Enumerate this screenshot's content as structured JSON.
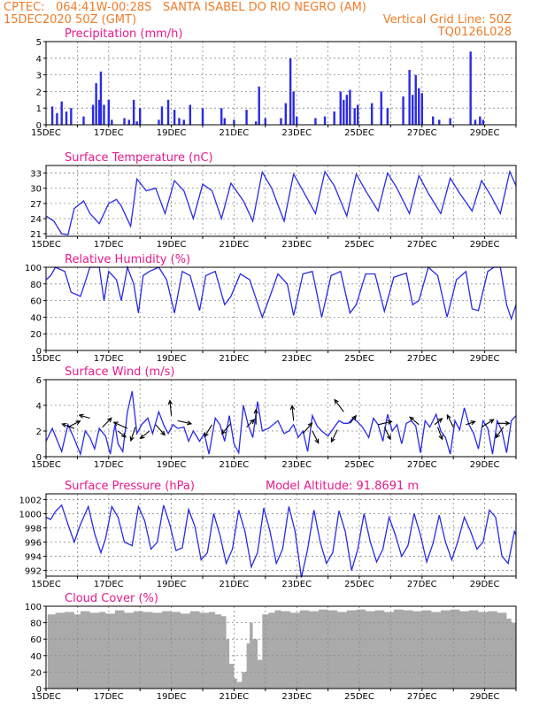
{
  "header": {
    "line1_left": "CPTEC:",
    "coords": "064:41W-00:28S",
    "station": "SANTA ISABEL DO RIO NEGRO (AM)",
    "date": "15DEC2020 50Z (GMT)",
    "grid_note": "Vertical Grid Line: 50Z",
    "code": "TQ0126L028"
  },
  "colors": {
    "header": "#f07c28",
    "title": "#e8198b",
    "series": "#2a2ae8",
    "cloud": "#aaaaaa",
    "grid": "#888888"
  },
  "x_labels": [
    "15DEC",
    "17DEC",
    "19DEC",
    "21DEC",
    "23DEC",
    "25DEC",
    "27DEC",
    "29DEC"
  ],
  "chart_data": [
    {
      "id": "precip",
      "type": "bar",
      "title": "Precipitation (mm/h)",
      "ylim": [
        0,
        5
      ],
      "yticks": [
        0,
        1,
        2,
        3,
        4,
        5
      ],
      "x_range_days": [
        15,
        30
      ],
      "grid": true,
      "x": [
        15.2,
        15.35,
        15.5,
        15.65,
        15.8,
        16.2,
        16.5,
        16.6,
        16.7,
        16.75,
        16.85,
        17.0,
        17.1,
        17.5,
        17.65,
        17.8,
        17.9,
        18.0,
        18.6,
        18.7,
        18.9,
        19.1,
        19.25,
        19.4,
        19.6,
        20.0,
        20.6,
        20.7,
        21.0,
        21.4,
        21.7,
        21.8,
        22.0,
        22.5,
        22.65,
        22.8,
        22.9,
        23.0,
        23.6,
        23.9,
        24.2,
        24.4,
        24.5,
        24.6,
        24.7,
        24.85,
        24.95,
        25.4,
        25.7,
        25.9,
        26.4,
        26.6,
        26.7,
        26.8,
        26.9,
        27.0,
        27.35,
        27.55,
        27.9,
        28.55,
        28.7,
        28.85,
        28.95
      ],
      "values": [
        1.1,
        0.7,
        1.4,
        0.8,
        1.0,
        0.5,
        1.2,
        2.5,
        1.5,
        3.2,
        1.2,
        1.5,
        0.3,
        0.4,
        0.3,
        1.5,
        0.2,
        1.0,
        0.3,
        1.1,
        1.5,
        0.9,
        0.4,
        0.3,
        1.2,
        1.0,
        1.0,
        0.4,
        0.3,
        0.9,
        0.2,
        2.3,
        0.4,
        0.4,
        1.3,
        4.0,
        2.0,
        0.5,
        0.4,
        0.5,
        0.8,
        2.0,
        1.5,
        1.8,
        2.1,
        1.0,
        1.2,
        1.3,
        2.0,
        1.0,
        1.7,
        3.3,
        1.8,
        3.0,
        2.2,
        1.9,
        0.5,
        0.3,
        0.4,
        4.4,
        0.3,
        0.5,
        0.3
      ]
    },
    {
      "id": "temp",
      "type": "line",
      "title": "Surface Temperature (nC)",
      "ylim": [
        20.5,
        34.5
      ],
      "yticks": [
        21,
        24,
        27,
        30,
        33
      ],
      "x_range_days": [
        15,
        30
      ],
      "grid": true,
      "x": [
        15.0,
        15.25,
        15.5,
        15.7,
        15.9,
        16.2,
        16.4,
        16.7,
        17.0,
        17.25,
        17.4,
        17.7,
        17.9,
        18.2,
        18.5,
        18.8,
        19.1,
        19.4,
        19.7,
        20.0,
        20.3,
        20.6,
        20.9,
        21.3,
        21.6,
        21.9,
        22.2,
        22.6,
        22.9,
        23.2,
        23.6,
        23.9,
        24.2,
        24.6,
        24.9,
        25.2,
        25.6,
        25.9,
        26.2,
        26.6,
        26.9,
        27.2,
        27.6,
        27.9,
        28.2,
        28.6,
        28.9,
        29.2,
        29.5,
        29.8,
        30.0
      ],
      "values": [
        24.5,
        23.5,
        21.0,
        20.8,
        26.0,
        27.5,
        25.0,
        23.0,
        27.0,
        27.8,
        26.5,
        22.5,
        31.8,
        29.5,
        30.0,
        25.0,
        31.5,
        29.5,
        24.0,
        30.8,
        29.5,
        24.0,
        31.0,
        27.5,
        23.5,
        33.2,
        30.0,
        23.5,
        32.8,
        29.5,
        25.0,
        33.3,
        30.5,
        24.5,
        32.8,
        29.5,
        25.5,
        33.0,
        30.0,
        25.0,
        32.5,
        29.0,
        25.0,
        32.0,
        29.0,
        25.5,
        31.5,
        28.5,
        25.0,
        33.3,
        30.5
      ]
    },
    {
      "id": "rh",
      "type": "line",
      "title": "Relative Humidity (%)",
      "ylim": [
        0,
        100
      ],
      "yticks": [
        0,
        20,
        40,
        60,
        80,
        100
      ],
      "x_range_days": [
        15,
        30
      ],
      "grid": true,
      "x": [
        15.0,
        15.15,
        15.3,
        15.6,
        15.8,
        16.1,
        16.4,
        16.7,
        16.85,
        17.0,
        17.25,
        17.4,
        17.6,
        17.8,
        17.95,
        18.1,
        18.3,
        18.6,
        18.85,
        19.1,
        19.35,
        19.6,
        19.9,
        20.1,
        20.4,
        20.7,
        20.9,
        21.2,
        21.5,
        21.9,
        22.1,
        22.4,
        22.7,
        22.9,
        23.2,
        23.5,
        23.8,
        24.1,
        24.4,
        24.7,
        24.9,
        25.2,
        25.5,
        25.8,
        26.1,
        26.5,
        26.7,
        26.9,
        27.2,
        27.5,
        27.8,
        28.1,
        28.4,
        28.6,
        28.8,
        29.1,
        29.3,
        29.5,
        29.7,
        29.85,
        30.0
      ],
      "values": [
        85,
        90,
        100,
        95,
        70,
        65,
        100,
        100,
        60,
        95,
        85,
        60,
        100,
        80,
        45,
        90,
        95,
        100,
        85,
        45,
        95,
        90,
        48,
        90,
        95,
        55,
        65,
        92,
        85,
        40,
        60,
        92,
        80,
        42,
        92,
        95,
        40,
        90,
        95,
        45,
        55,
        92,
        92,
        47,
        88,
        93,
        55,
        60,
        100,
        90,
        40,
        85,
        95,
        50,
        48,
        95,
        100,
        100,
        55,
        38,
        55
      ]
    },
    {
      "id": "wind",
      "type": "line",
      "title": "Surface Wind (m/s)",
      "ylim": [
        0,
        6
      ],
      "yticks": [
        0,
        2,
        4,
        6
      ],
      "x_range_days": [
        15,
        30
      ],
      "grid": true,
      "x": [
        15.0,
        15.2,
        15.35,
        15.5,
        15.7,
        15.9,
        16.1,
        16.25,
        16.4,
        16.55,
        16.7,
        16.9,
        17.05,
        17.2,
        17.3,
        17.45,
        17.6,
        17.75,
        17.9,
        18.05,
        18.25,
        18.4,
        18.6,
        18.75,
        18.9,
        19.05,
        19.2,
        19.4,
        19.55,
        19.7,
        19.9,
        20.05,
        20.2,
        20.4,
        20.55,
        20.7,
        20.85,
        21.0,
        21.15,
        21.3,
        21.45,
        21.6,
        21.75,
        21.9,
        22.1,
        22.25,
        22.4,
        22.6,
        22.75,
        22.9,
        23.05,
        23.2,
        23.35,
        23.5,
        23.65,
        23.8,
        24.0,
        24.2,
        24.35,
        24.5,
        24.65,
        24.8,
        24.95,
        25.1,
        25.3,
        25.45,
        25.6,
        25.75,
        25.9,
        26.05,
        26.2,
        26.35,
        26.5,
        26.65,
        26.8,
        26.95,
        27.1,
        27.25,
        27.45,
        27.6,
        27.75,
        27.9,
        28.05,
        28.2,
        28.35,
        28.5,
        28.65,
        28.8,
        28.95,
        29.1,
        29.25,
        29.4,
        29.55,
        29.7,
        29.85,
        30.0
      ],
      "values": [
        1.2,
        2.2,
        1.3,
        0.4,
        2.5,
        1.4,
        0.2,
        2.0,
        1.5,
        0.6,
        2.2,
        1.6,
        0.2,
        2.5,
        1.0,
        0.4,
        3.5,
        5.1,
        1.8,
        2.5,
        3.0,
        1.8,
        3.5,
        2.5,
        1.8,
        2.5,
        2.2,
        2.3,
        1.2,
        2.0,
        1.2,
        1.8,
        0.2,
        3.0,
        2.5,
        1.2,
        3.2,
        1.0,
        0.3,
        4.0,
        2.5,
        1.5,
        4.3,
        2.0,
        2.2,
        2.5,
        2.8,
        1.8,
        2.0,
        2.5,
        1.5,
        2.0,
        0.4,
        3.2,
        2.4,
        2.0,
        1.6,
        2.3,
        2.8,
        2.6,
        2.6,
        3.0,
        2.7,
        2.3,
        1.5,
        3.0,
        2.5,
        1.2,
        3.3,
        2.0,
        2.5,
        1.0,
        2.6,
        2.8,
        2.4,
        0.3,
        2.8,
        2.3,
        3.3,
        2.0,
        1.5,
        0.2,
        2.8,
        2.1,
        3.8,
        2.5,
        1.8,
        0.6,
        2.8,
        2.2,
        0.2,
        2.8,
        2.0,
        0.3,
        2.8,
        3.2
      ],
      "arrows": [
        [
          15.7,
          2.3,
          0.8,
          0.4
        ],
        [
          15.9,
          2.2,
          -0.8,
          0.3
        ],
        [
          16.4,
          3.0,
          -0.7,
          0.2
        ],
        [
          16.8,
          2.3,
          0.6,
          0.6
        ],
        [
          17.3,
          2.0,
          0.5,
          -0.4
        ],
        [
          17.6,
          2.2,
          -0.9,
          0.4
        ],
        [
          17.85,
          2.3,
          -0.3,
          -0.9
        ],
        [
          18.3,
          2.0,
          -0.6,
          -0.5
        ],
        [
          18.5,
          2.5,
          0.6,
          -0.7
        ],
        [
          19.0,
          3.2,
          -0.1,
          1.0
        ],
        [
          19.2,
          2.8,
          0.9,
          -0.2
        ],
        [
          20.3,
          2.5,
          -0.5,
          -0.8
        ],
        [
          20.9,
          2.6,
          -0.6,
          -0.7
        ],
        [
          21.4,
          2.3,
          0.5,
          0.5
        ],
        [
          21.7,
          2.5,
          0.0,
          1.0
        ],
        [
          22.9,
          2.8,
          -0.1,
          1.0
        ],
        [
          23.2,
          1.8,
          0.6,
          0.7
        ],
        [
          23.5,
          2.0,
          0.4,
          -0.8
        ],
        [
          24.3,
          2.1,
          -0.4,
          -0.8
        ],
        [
          24.5,
          3.5,
          -0.6,
          0.8
        ],
        [
          24.7,
          2.6,
          0.4,
          0.5
        ],
        [
          25.6,
          2.5,
          0.9,
          0.2
        ],
        [
          25.8,
          2.3,
          0.4,
          -0.8
        ],
        [
          26.9,
          2.5,
          -0.6,
          0.5
        ],
        [
          27.4,
          2.5,
          0.5,
          0.4
        ],
        [
          27.5,
          2.3,
          0.3,
          -0.8
        ],
        [
          28.0,
          2.3,
          -0.4,
          0.8
        ],
        [
          28.4,
          2.5,
          0.6,
          0.2
        ],
        [
          28.9,
          2.3,
          0.8,
          0.5
        ],
        [
          29.4,
          2.6,
          0.8,
          0.0
        ],
        [
          29.6,
          2.3,
          -0.5,
          -0.7
        ]
      ]
    },
    {
      "id": "pres",
      "type": "line",
      "title": "Surface Pressure (hPa)",
      "annotation": "Model Altitude: 91.8691 m",
      "ylim": [
        991.2,
        1002.8
      ],
      "yticks": [
        992,
        994,
        996,
        998,
        1000,
        1002
      ],
      "x_range_days": [
        15,
        30
      ],
      "grid": true,
      "x": [
        15.0,
        15.15,
        15.3,
        15.5,
        15.7,
        15.9,
        16.1,
        16.35,
        16.55,
        16.75,
        16.9,
        17.1,
        17.3,
        17.5,
        17.75,
        17.95,
        18.15,
        18.35,
        18.55,
        18.75,
        18.95,
        19.15,
        19.35,
        19.55,
        19.75,
        19.95,
        20.15,
        20.35,
        20.55,
        20.75,
        20.95,
        21.15,
        21.35,
        21.55,
        21.75,
        21.95,
        22.15,
        22.35,
        22.55,
        22.75,
        22.95,
        23.15,
        23.35,
        23.55,
        23.75,
        23.95,
        24.15,
        24.35,
        24.55,
        24.75,
        24.95,
        25.15,
        25.35,
        25.55,
        25.75,
        25.95,
        26.15,
        26.35,
        26.55,
        26.75,
        26.95,
        27.15,
        27.35,
        27.55,
        27.75,
        27.95,
        28.15,
        28.35,
        28.55,
        28.75,
        28.95,
        29.15,
        29.35,
        29.55,
        29.75,
        29.95,
        30.0
      ],
      "values": [
        999.5,
        999.2,
        1000.3,
        1001.2,
        998.5,
        996.0,
        998.5,
        1001.0,
        997.2,
        994.5,
        996.5,
        1001.0,
        999.5,
        996.0,
        995.5,
        1001.0,
        999.0,
        995.0,
        996.0,
        1001.2,
        998.5,
        994.8,
        995.2,
        1000.6,
        998.2,
        993.5,
        994.5,
        1000.0,
        997.0,
        993.0,
        995.0,
        1000.5,
        997.5,
        992.5,
        994.5,
        1000.8,
        997.5,
        993.0,
        995.0,
        1001.0,
        997.5,
        991.0,
        995.0,
        1000.5,
        996.0,
        993.0,
        994.5,
        1000.4,
        997.5,
        992.0,
        995.0,
        1000.0,
        996.0,
        993.2,
        995.0,
        999.5,
        997.0,
        994.0,
        995.5,
        1000.0,
        997.0,
        993.2,
        995.8,
        999.8,
        996.0,
        993.5,
        996.2,
        999.5,
        997.5,
        995.0,
        996.0,
        1000.5,
        999.5,
        994.0,
        993.0,
        997.5,
        997.0
      ]
    },
    {
      "id": "cloud",
      "type": "area",
      "title": "Cloud Cover (%)",
      "ylim": [
        0,
        100
      ],
      "yticks": [
        0,
        20,
        40,
        60,
        80,
        100
      ],
      "x_range_days": [
        15,
        30
      ],
      "grid": true,
      "x": [
        15.0,
        15.05,
        15.3,
        15.6,
        15.9,
        16.1,
        16.4,
        16.7,
        16.9,
        17.2,
        17.5,
        17.8,
        18.1,
        18.4,
        18.7,
        19.0,
        19.3,
        19.6,
        19.9,
        20.2,
        20.4,
        20.6,
        20.75,
        20.85,
        21.0,
        21.1,
        21.25,
        21.4,
        21.5,
        21.6,
        21.75,
        21.9,
        22.1,
        22.3,
        22.5,
        22.8,
        23.1,
        23.4,
        23.7,
        24.0,
        24.3,
        24.6,
        24.9,
        25.2,
        25.5,
        25.8,
        26.1,
        26.4,
        26.7,
        27.0,
        27.3,
        27.6,
        27.9,
        28.2,
        28.5,
        28.8,
        29.1,
        29.4,
        29.7,
        29.85,
        30.0
      ],
      "values": [
        0,
        90,
        92,
        93,
        90,
        94,
        92,
        93,
        91,
        95,
        92,
        94,
        93,
        92,
        94,
        93,
        91,
        94,
        92,
        93,
        90,
        88,
        60,
        30,
        12,
        8,
        20,
        55,
        80,
        60,
        35,
        90,
        92,
        95,
        94,
        92,
        95,
        94,
        96,
        95,
        93,
        95,
        96,
        94,
        95,
        93,
        96,
        95,
        94,
        95,
        93,
        95,
        96,
        94,
        95,
        93,
        94,
        92,
        85,
        80,
        78
      ]
    }
  ]
}
